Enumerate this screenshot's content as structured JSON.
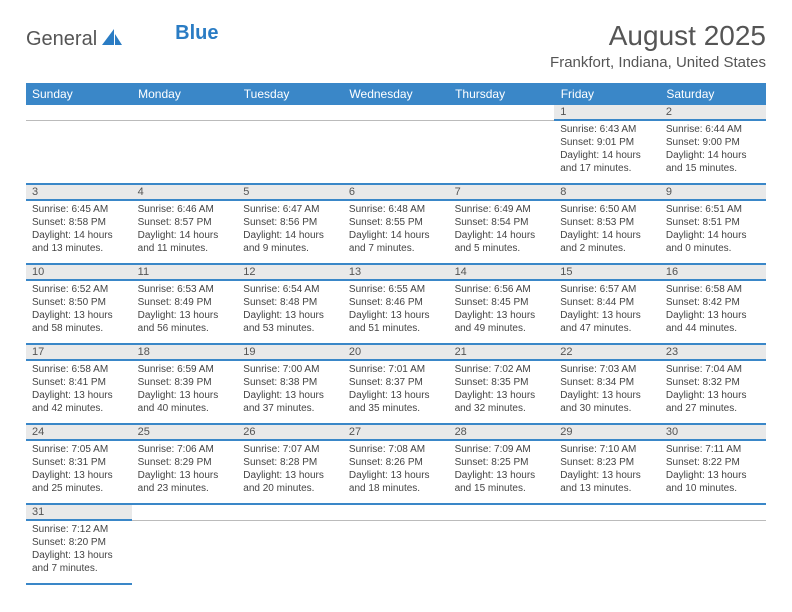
{
  "logo": {
    "text1": "General",
    "text2": "Blue"
  },
  "title": "August 2025",
  "location": "Frankfort, Indiana, United States",
  "header_bg": "#3a87c8",
  "daynum_bg": "#e9e9e9",
  "rule_color": "#3a87c8",
  "font_family": "Arial",
  "title_fontsize": 28,
  "header_fontsize": 12,
  "cell_fontsize": 10,
  "dayheaders": [
    "Sunday",
    "Monday",
    "Tuesday",
    "Wednesday",
    "Thursday",
    "Friday",
    "Saturday"
  ],
  "weeks": [
    [
      null,
      null,
      null,
      null,
      null,
      {
        "n": "1",
        "sr": "Sunrise: 6:43 AM",
        "ss": "Sunset: 9:01 PM",
        "dl1": "Daylight: 14 hours",
        "dl2": "and 17 minutes."
      },
      {
        "n": "2",
        "sr": "Sunrise: 6:44 AM",
        "ss": "Sunset: 9:00 PM",
        "dl1": "Daylight: 14 hours",
        "dl2": "and 15 minutes."
      }
    ],
    [
      {
        "n": "3",
        "sr": "Sunrise: 6:45 AM",
        "ss": "Sunset: 8:58 PM",
        "dl1": "Daylight: 14 hours",
        "dl2": "and 13 minutes."
      },
      {
        "n": "4",
        "sr": "Sunrise: 6:46 AM",
        "ss": "Sunset: 8:57 PM",
        "dl1": "Daylight: 14 hours",
        "dl2": "and 11 minutes."
      },
      {
        "n": "5",
        "sr": "Sunrise: 6:47 AM",
        "ss": "Sunset: 8:56 PM",
        "dl1": "Daylight: 14 hours",
        "dl2": "and 9 minutes."
      },
      {
        "n": "6",
        "sr": "Sunrise: 6:48 AM",
        "ss": "Sunset: 8:55 PM",
        "dl1": "Daylight: 14 hours",
        "dl2": "and 7 minutes."
      },
      {
        "n": "7",
        "sr": "Sunrise: 6:49 AM",
        "ss": "Sunset: 8:54 PM",
        "dl1": "Daylight: 14 hours",
        "dl2": "and 5 minutes."
      },
      {
        "n": "8",
        "sr": "Sunrise: 6:50 AM",
        "ss": "Sunset: 8:53 PM",
        "dl1": "Daylight: 14 hours",
        "dl2": "and 2 minutes."
      },
      {
        "n": "9",
        "sr": "Sunrise: 6:51 AM",
        "ss": "Sunset: 8:51 PM",
        "dl1": "Daylight: 14 hours",
        "dl2": "and 0 minutes."
      }
    ],
    [
      {
        "n": "10",
        "sr": "Sunrise: 6:52 AM",
        "ss": "Sunset: 8:50 PM",
        "dl1": "Daylight: 13 hours",
        "dl2": "and 58 minutes."
      },
      {
        "n": "11",
        "sr": "Sunrise: 6:53 AM",
        "ss": "Sunset: 8:49 PM",
        "dl1": "Daylight: 13 hours",
        "dl2": "and 56 minutes."
      },
      {
        "n": "12",
        "sr": "Sunrise: 6:54 AM",
        "ss": "Sunset: 8:48 PM",
        "dl1": "Daylight: 13 hours",
        "dl2": "and 53 minutes."
      },
      {
        "n": "13",
        "sr": "Sunrise: 6:55 AM",
        "ss": "Sunset: 8:46 PM",
        "dl1": "Daylight: 13 hours",
        "dl2": "and 51 minutes."
      },
      {
        "n": "14",
        "sr": "Sunrise: 6:56 AM",
        "ss": "Sunset: 8:45 PM",
        "dl1": "Daylight: 13 hours",
        "dl2": "and 49 minutes."
      },
      {
        "n": "15",
        "sr": "Sunrise: 6:57 AM",
        "ss": "Sunset: 8:44 PM",
        "dl1": "Daylight: 13 hours",
        "dl2": "and 47 minutes."
      },
      {
        "n": "16",
        "sr": "Sunrise: 6:58 AM",
        "ss": "Sunset: 8:42 PM",
        "dl1": "Daylight: 13 hours",
        "dl2": "and 44 minutes."
      }
    ],
    [
      {
        "n": "17",
        "sr": "Sunrise: 6:58 AM",
        "ss": "Sunset: 8:41 PM",
        "dl1": "Daylight: 13 hours",
        "dl2": "and 42 minutes."
      },
      {
        "n": "18",
        "sr": "Sunrise: 6:59 AM",
        "ss": "Sunset: 8:39 PM",
        "dl1": "Daylight: 13 hours",
        "dl2": "and 40 minutes."
      },
      {
        "n": "19",
        "sr": "Sunrise: 7:00 AM",
        "ss": "Sunset: 8:38 PM",
        "dl1": "Daylight: 13 hours",
        "dl2": "and 37 minutes."
      },
      {
        "n": "20",
        "sr": "Sunrise: 7:01 AM",
        "ss": "Sunset: 8:37 PM",
        "dl1": "Daylight: 13 hours",
        "dl2": "and 35 minutes."
      },
      {
        "n": "21",
        "sr": "Sunrise: 7:02 AM",
        "ss": "Sunset: 8:35 PM",
        "dl1": "Daylight: 13 hours",
        "dl2": "and 32 minutes."
      },
      {
        "n": "22",
        "sr": "Sunrise: 7:03 AM",
        "ss": "Sunset: 8:34 PM",
        "dl1": "Daylight: 13 hours",
        "dl2": "and 30 minutes."
      },
      {
        "n": "23",
        "sr": "Sunrise: 7:04 AM",
        "ss": "Sunset: 8:32 PM",
        "dl1": "Daylight: 13 hours",
        "dl2": "and 27 minutes."
      }
    ],
    [
      {
        "n": "24",
        "sr": "Sunrise: 7:05 AM",
        "ss": "Sunset: 8:31 PM",
        "dl1": "Daylight: 13 hours",
        "dl2": "and 25 minutes."
      },
      {
        "n": "25",
        "sr": "Sunrise: 7:06 AM",
        "ss": "Sunset: 8:29 PM",
        "dl1": "Daylight: 13 hours",
        "dl2": "and 23 minutes."
      },
      {
        "n": "26",
        "sr": "Sunrise: 7:07 AM",
        "ss": "Sunset: 8:28 PM",
        "dl1": "Daylight: 13 hours",
        "dl2": "and 20 minutes."
      },
      {
        "n": "27",
        "sr": "Sunrise: 7:08 AM",
        "ss": "Sunset: 8:26 PM",
        "dl1": "Daylight: 13 hours",
        "dl2": "and 18 minutes."
      },
      {
        "n": "28",
        "sr": "Sunrise: 7:09 AM",
        "ss": "Sunset: 8:25 PM",
        "dl1": "Daylight: 13 hours",
        "dl2": "and 15 minutes."
      },
      {
        "n": "29",
        "sr": "Sunrise: 7:10 AM",
        "ss": "Sunset: 8:23 PM",
        "dl1": "Daylight: 13 hours",
        "dl2": "and 13 minutes."
      },
      {
        "n": "30",
        "sr": "Sunrise: 7:11 AM",
        "ss": "Sunset: 8:22 PM",
        "dl1": "Daylight: 13 hours",
        "dl2": "and 10 minutes."
      }
    ],
    [
      {
        "n": "31",
        "sr": "Sunrise: 7:12 AM",
        "ss": "Sunset: 8:20 PM",
        "dl1": "Daylight: 13 hours",
        "dl2": "and 7 minutes."
      },
      null,
      null,
      null,
      null,
      null,
      null
    ]
  ]
}
